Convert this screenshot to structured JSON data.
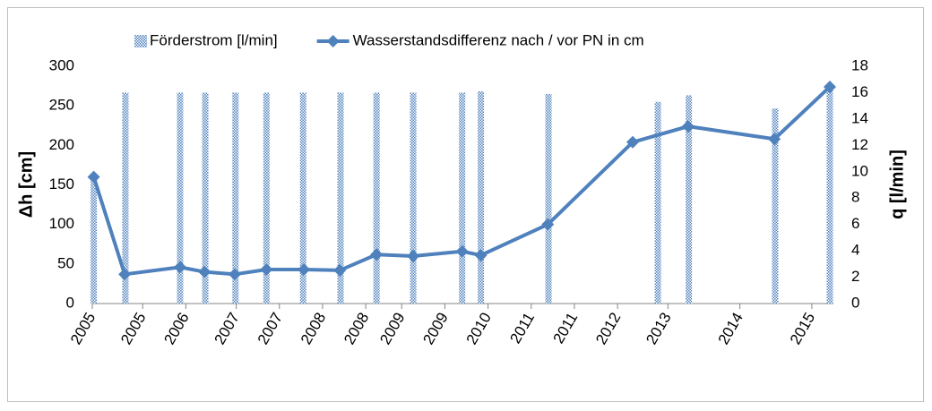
{
  "chart_data": {
    "type": "combo",
    "ylabel": "Δh [cm]",
    "y2label": "q [l/min]",
    "xlim": [
      2005.0,
      2015.3
    ],
    "xticks": [
      {
        "value": 2005.0,
        "label": "2005"
      },
      {
        "value": 2005.7,
        "label": "2005"
      },
      {
        "value": 2006.3,
        "label": "2006"
      },
      {
        "value": 2007.0,
        "label": "2007"
      },
      {
        "value": 2007.6,
        "label": "2007"
      },
      {
        "value": 2008.2,
        "label": "2008"
      },
      {
        "value": 2008.8,
        "label": "2008"
      },
      {
        "value": 2009.3,
        "label": "2009"
      },
      {
        "value": 2009.9,
        "label": "2009"
      },
      {
        "value": 2010.5,
        "label": "2010"
      },
      {
        "value": 2011.1,
        "label": "2011"
      },
      {
        "value": 2011.7,
        "label": "2011"
      },
      {
        "value": 2012.3,
        "label": "2012"
      },
      {
        "value": 2013.0,
        "label": "2013"
      },
      {
        "value": 2014.0,
        "label": "2014"
      },
      {
        "value": 2015.0,
        "label": "2015"
      }
    ],
    "ylim": [
      0,
      300
    ],
    "yticks": [
      0,
      50,
      100,
      150,
      200,
      250,
      300
    ],
    "y2lim": [
      0,
      18
    ],
    "y2ticks": [
      0,
      2,
      4,
      6,
      8,
      10,
      12,
      14,
      16,
      18
    ],
    "grid": false,
    "legend": "top",
    "series": [
      {
        "name": "Förderstrom [l/min]",
        "type": "bar",
        "axis": "y2",
        "color": "#4f81bd",
        "x": [
          2005.02,
          2005.46,
          2006.22,
          2006.57,
          2006.99,
          2007.42,
          2007.93,
          2008.45,
          2008.95,
          2009.46,
          2010.14,
          2010.4,
          2011.34,
          2012.86,
          2013.29,
          2014.49,
          2015.25
        ],
        "values": [
          9.5,
          16,
          16,
          16,
          16,
          16,
          16,
          16,
          16,
          16,
          16,
          16.1,
          15.9,
          15.3,
          15.8,
          14.8,
          16.4
        ]
      },
      {
        "name": "Wasserstandsdifferenz nach / vor PN in cm",
        "type": "line",
        "color": "#4f81bd",
        "x": [
          2005.02,
          2005.45,
          2006.22,
          2006.56,
          2006.98,
          2007.42,
          2007.94,
          2008.44,
          2008.95,
          2009.46,
          2010.14,
          2010.4,
          2011.33,
          2012.51,
          2013.28,
          2014.48,
          2015.25
        ],
        "values": [
          160,
          37,
          46,
          40,
          37,
          43,
          43,
          42,
          62,
          60,
          66,
          61,
          100,
          204,
          224,
          208,
          274
        ]
      }
    ]
  }
}
